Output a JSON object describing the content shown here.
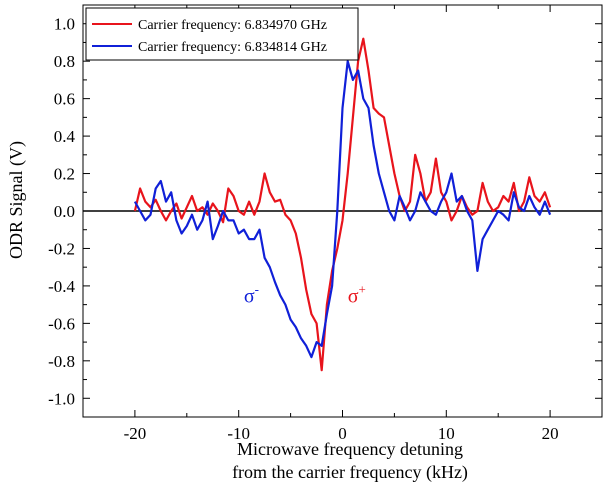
{
  "chart_data": {
    "type": "line",
    "title": "",
    "xlabel_line1": "Microwave frequency detuning",
    "xlabel_line2": "from the carrier frequency (kHz)",
    "ylabel": "ODR Signal (V)",
    "xlim": [
      -25,
      25
    ],
    "ylim": [
      -1.1,
      1.1
    ],
    "x_ticks": [
      -20,
      -10,
      0,
      10,
      20
    ],
    "x_tick_labels": [
      "-20",
      "-10",
      "0",
      "10",
      "20"
    ],
    "y_ticks": [
      1.0,
      0.8,
      0.6,
      0.4,
      0.2,
      0.0,
      -0.2,
      -0.4,
      -0.6,
      -0.8,
      -1.0
    ],
    "y_tick_labels": [
      "1.0",
      "0.8",
      "0.6",
      "0.4",
      "0.2",
      "0.0",
      "-0.2",
      "-0.4",
      "-0.6",
      "-0.8",
      "-1.0"
    ],
    "grid": false,
    "legend_position": "top-left",
    "zero_line": true,
    "series": [
      {
        "name": "Carrier frequency: 6.834970 GHz",
        "color": "#e8141c",
        "x": [
          -20,
          -19.5,
          -19,
          -18.5,
          -18,
          -17.5,
          -17,
          -16.5,
          -16,
          -15.5,
          -15,
          -14.5,
          -14,
          -13.5,
          -13,
          -12.5,
          -12,
          -11.5,
          -11,
          -10.5,
          -10,
          -9.5,
          -9,
          -8.5,
          -8,
          -7.5,
          -7,
          -6.5,
          -6,
          -5.5,
          -5,
          -4.5,
          -4,
          -3.5,
          -3,
          -2.5,
          -2,
          -1.5,
          -1,
          -0.5,
          0,
          0.5,
          1,
          1.5,
          2,
          2.5,
          3,
          3.5,
          4,
          4.5,
          5,
          5.5,
          6,
          6.5,
          7,
          7.5,
          8,
          8.5,
          9,
          9.5,
          10,
          10.5,
          11,
          11.5,
          12,
          12.5,
          13,
          13.5,
          14,
          14.5,
          15,
          15.5,
          16,
          16.5,
          17,
          17.5,
          18,
          18.5,
          19,
          19.5,
          20
        ],
        "y": [
          0.0,
          0.12,
          0.05,
          0.02,
          0.06,
          0.0,
          -0.05,
          0.0,
          0.04,
          -0.04,
          0.02,
          0.08,
          0.0,
          0.02,
          -0.02,
          0.04,
          0.0,
          -0.06,
          0.12,
          0.08,
          0.0,
          -0.02,
          0.05,
          -0.02,
          0.05,
          0.2,
          0.1,
          0.05,
          0.06,
          -0.02,
          -0.05,
          -0.12,
          -0.25,
          -0.42,
          -0.55,
          -0.6,
          -0.85,
          -0.5,
          -0.32,
          -0.2,
          -0.05,
          0.2,
          0.5,
          0.8,
          0.92,
          0.75,
          0.55,
          0.52,
          0.5,
          0.35,
          0.2,
          0.08,
          0.0,
          0.05,
          0.3,
          0.2,
          0.05,
          0.1,
          0.28,
          0.1,
          0.05,
          -0.05,
          0.0,
          0.08,
          0.02,
          -0.02,
          0.0,
          0.15,
          0.05,
          0.0,
          0.02,
          0.08,
          0.05,
          0.15,
          0.0,
          0.05,
          0.18,
          0.08,
          0.05,
          0.1,
          0.02
        ]
      },
      {
        "name": "Carrier frequency: 6.834814 GHz",
        "color": "#1020d8",
        "x": [
          -20,
          -19.5,
          -19,
          -18.5,
          -18,
          -17.5,
          -17,
          -16.5,
          -16,
          -15.5,
          -15,
          -14.5,
          -14,
          -13.5,
          -13,
          -12.5,
          -12,
          -11.5,
          -11,
          -10.5,
          -10,
          -9.5,
          -9,
          -8.5,
          -8,
          -7.5,
          -7,
          -6.5,
          -6,
          -5.5,
          -5,
          -4.5,
          -4,
          -3.5,
          -3,
          -2.5,
          -2,
          -1.5,
          -1,
          -0.5,
          0,
          0.5,
          1,
          1.5,
          2,
          2.5,
          3,
          3.5,
          4,
          4.5,
          5,
          5.5,
          6,
          6.5,
          7,
          7.5,
          8,
          8.5,
          9,
          9.5,
          10,
          10.5,
          11,
          11.5,
          12,
          12.5,
          13,
          13.5,
          14,
          14.5,
          15,
          15.5,
          16,
          16.5,
          17,
          17.5,
          18,
          18.5,
          19,
          19.5,
          20
        ],
        "y": [
          0.05,
          0.0,
          -0.05,
          -0.02,
          0.12,
          0.16,
          0.05,
          0.1,
          -0.05,
          -0.12,
          -0.08,
          -0.02,
          -0.1,
          -0.05,
          0.05,
          -0.15,
          -0.08,
          0.0,
          -0.05,
          -0.05,
          -0.12,
          -0.1,
          -0.15,
          -0.15,
          -0.1,
          -0.25,
          -0.3,
          -0.38,
          -0.45,
          -0.5,
          -0.58,
          -0.62,
          -0.68,
          -0.72,
          -0.78,
          -0.7,
          -0.72,
          -0.55,
          -0.4,
          0.0,
          0.55,
          0.8,
          0.7,
          0.75,
          0.6,
          0.55,
          0.35,
          0.2,
          0.1,
          0.0,
          -0.05,
          0.08,
          0.02,
          -0.05,
          0.0,
          0.1,
          0.05,
          0.0,
          -0.02,
          0.05,
          0.1,
          0.2,
          0.05,
          0.08,
          0.0,
          -0.05,
          -0.32,
          -0.15,
          -0.1,
          -0.05,
          0.0,
          -0.02,
          -0.05,
          0.1,
          0.02,
          0.0,
          0.08,
          0.02,
          -0.02,
          0.05,
          -0.02
        ]
      }
    ],
    "annotations": [
      {
        "base": "σ",
        "sup": "-",
        "x": -9.5,
        "y": -0.45,
        "color": "#1020d8"
      },
      {
        "base": "σ",
        "sup": "+",
        "x": 0.5,
        "y": -0.45,
        "color": "#e8141c"
      }
    ]
  }
}
